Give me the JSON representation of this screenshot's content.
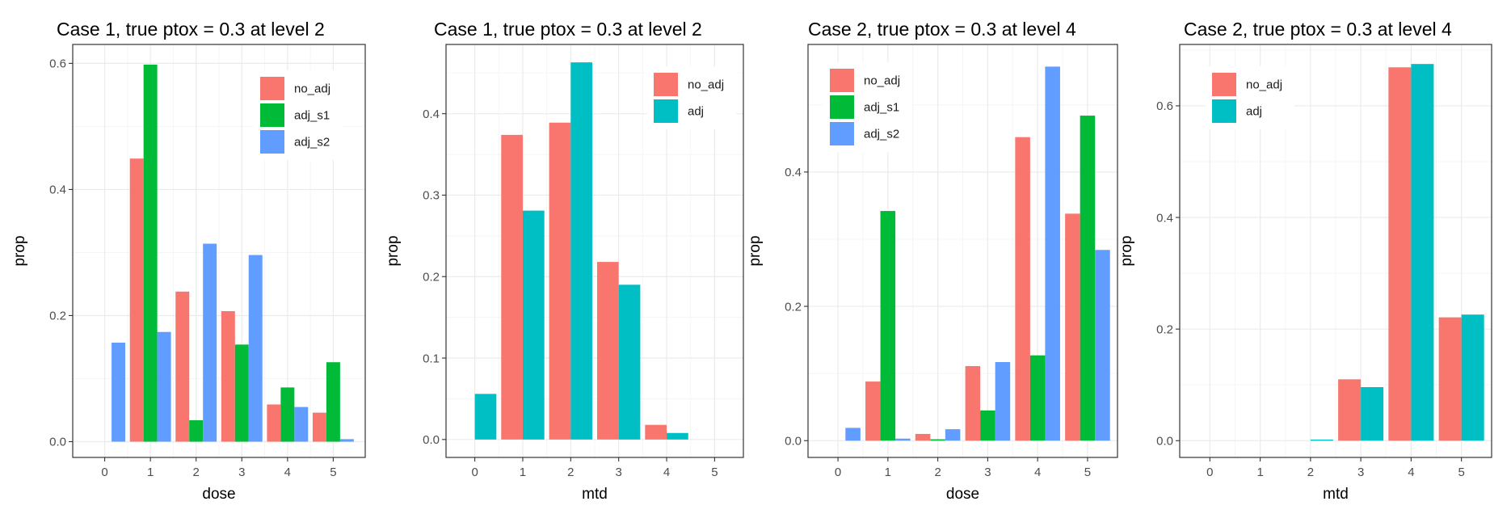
{
  "colors": {
    "no_adj": "#F8766D",
    "adj_s1": "#00BA38",
    "adj_s2": "#619CFF",
    "adj": "#00BFC4",
    "grid_major": "#EBEBEB",
    "grid_minor": "#F5F5F5",
    "panel_border": "#333333"
  },
  "chart_data": [
    {
      "type": "bar",
      "title": "Case 1, true ptox = 0.3 at level 2",
      "xlabel": "dose",
      "ylabel": "prop",
      "categories": [
        "0",
        "1",
        "2",
        "3",
        "4",
        "5"
      ],
      "xlim": [
        -0.7,
        5.7
      ],
      "ylim": [
        -0.025,
        0.63
      ],
      "yticks": [
        0.0,
        0.2,
        0.4,
        0.6
      ],
      "ytick_labels": [
        "0.0",
        "0.2",
        "0.4",
        "0.6"
      ],
      "legend_position": "top-right",
      "series": [
        {
          "name": "no_adj",
          "color_key": "no_adj",
          "values": [
            0,
            0.449,
            0.238,
            0.207,
            0.059,
            0.046
          ]
        },
        {
          "name": "adj_s1",
          "color_key": "adj_s1",
          "values": [
            0,
            0.598,
            0.034,
            0.154,
            0.086,
            0.126
          ]
        },
        {
          "name": "adj_s2",
          "color_key": "adj_s2",
          "values": [
            0.157,
            0.174,
            0.314,
            0.296,
            0.055,
            0.004
          ]
        }
      ]
    },
    {
      "type": "bar",
      "title": "Case 1, true ptox = 0.3 at level 2",
      "xlabel": "mtd",
      "ylabel": "prop",
      "categories": [
        "0",
        "1",
        "2",
        "3",
        "4",
        "5"
      ],
      "xlim": [
        -0.6,
        5.6
      ],
      "ylim": [
        -0.022,
        0.485
      ],
      "yticks": [
        0.0,
        0.1,
        0.2,
        0.3,
        0.4
      ],
      "ytick_labels": [
        "0.0",
        "0.1",
        "0.2",
        "0.3",
        "0.4"
      ],
      "legend_position": "top-right",
      "series": [
        {
          "name": "no_adj",
          "color_key": "no_adj",
          "values": [
            0,
            0.374,
            0.389,
            0.218,
            0.018,
            0
          ]
        },
        {
          "name": "adj",
          "color_key": "adj",
          "values": [
            0.056,
            0.281,
            0.463,
            0.19,
            0.008,
            0
          ]
        }
      ]
    },
    {
      "type": "bar",
      "title": "Case 2, true ptox = 0.3 at level 4",
      "xlabel": "dose",
      "ylabel": "prop",
      "categories": [
        "0",
        "1",
        "2",
        "3",
        "4",
        "5"
      ],
      "xlim": [
        -0.6,
        5.6
      ],
      "ylim": [
        -0.025,
        0.59
      ],
      "yticks": [
        0.0,
        0.2,
        0.4
      ],
      "ytick_labels": [
        "0.0",
        "0.2",
        "0.4"
      ],
      "legend_position": "top-left",
      "series": [
        {
          "name": "no_adj",
          "color_key": "no_adj",
          "values": [
            0,
            0.088,
            0.01,
            0.111,
            0.452,
            0.338
          ]
        },
        {
          "name": "adj_s1",
          "color_key": "adj_s1",
          "values": [
            0,
            0.342,
            0.002,
            0.045,
            0.127,
            0.484
          ]
        },
        {
          "name": "adj_s2",
          "color_key": "adj_s2",
          "values": [
            0.019,
            0.003,
            0.017,
            0.117,
            0.557,
            0.284
          ]
        }
      ]
    },
    {
      "type": "bar",
      "title": "Case 2, true ptox = 0.3 at level 4",
      "xlabel": "mtd",
      "ylabel": "prop",
      "categories": [
        "0",
        "1",
        "2",
        "3",
        "4",
        "5"
      ],
      "xlim": [
        -0.6,
        5.6
      ],
      "ylim": [
        -0.03,
        0.71
      ],
      "yticks": [
        0.0,
        0.2,
        0.4,
        0.6
      ],
      "ytick_labels": [
        "0.0",
        "0.2",
        "0.4",
        "0.6"
      ],
      "legend_position": "top-left",
      "series": [
        {
          "name": "no_adj",
          "color_key": "no_adj",
          "values": [
            0,
            0,
            0,
            0.11,
            0.669,
            0.221
          ]
        },
        {
          "name": "adj",
          "color_key": "adj",
          "values": [
            0,
            0,
            0.002,
            0.096,
            0.675,
            0.226
          ]
        }
      ]
    }
  ]
}
